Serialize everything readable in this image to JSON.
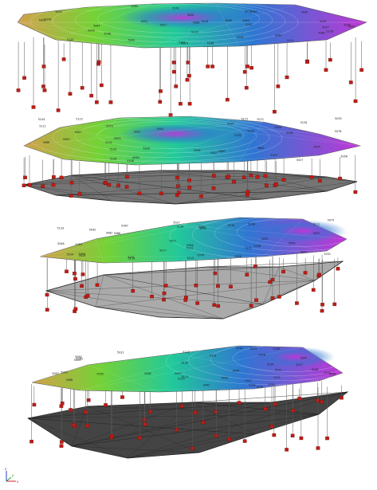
{
  "figure": {
    "panels": [
      {
        "id": "a",
        "has_base_surface": false,
        "base_color": "",
        "contour_labels": [
          "5134",
          "5133",
          "5131",
          "5126",
          "5122",
          "5119",
          "5115",
          "5111",
          "5108",
          "5104",
          "5101",
          "5097",
          "5093",
          "5090",
          "5086",
          "5082",
          "5078",
          "5075",
          "5071",
          "5067",
          "5064",
          "5060",
          "5056",
          "5053",
          "5049",
          "5046",
          "5042",
          "5038",
          "5035",
          "5031",
          "5027",
          "5024",
          "5020",
          "5017"
        ]
      },
      {
        "id": "b",
        "has_base_surface": true,
        "base_color": "#6e6e6e",
        "contour_labels": [
          "5134",
          "5133",
          "5131",
          "5126",
          "5122",
          "5119",
          "5115",
          "5111",
          "5108",
          "5104",
          "5101",
          "5097",
          "5093",
          "5090",
          "5086",
          "5082",
          "5078",
          "5075",
          "5071",
          "5067",
          "5064",
          "5060",
          "5056",
          "5053",
          "5049",
          "5046",
          "5042",
          "5038",
          "5035",
          "5031",
          "5027",
          "5024",
          "5020",
          "5017"
        ]
      },
      {
        "id": "c",
        "has_base_surface": true,
        "base_color": "#a6a6a6",
        "contour_labels": [
          "5134",
          "5133",
          "5131",
          "5126",
          "5122",
          "5119",
          "5115",
          "5111",
          "5108",
          "5104",
          "5101",
          "5097",
          "5093",
          "5090",
          "5086",
          "5082",
          "5078",
          "5075",
          "5071",
          "5067",
          "5064",
          "5060",
          "5056",
          "5053",
          "5049",
          "5046",
          "5042",
          "5038",
          "5035",
          "5031",
          "5027",
          "5024",
          "5020",
          "5017"
        ]
      },
      {
        "id": "d",
        "has_base_surface": true,
        "base_color": "#3a3a3a",
        "contour_labels": [
          "5134",
          "5133",
          "5131",
          "5126",
          "5122",
          "5119",
          "5115",
          "5111",
          "5108",
          "5104",
          "5101",
          "5097",
          "5093",
          "5090",
          "5086",
          "5082",
          "5078",
          "5075",
          "5071",
          "5067",
          "5064",
          "5060",
          "5056",
          "5053",
          "5049",
          "5046",
          "5042",
          "5038",
          "5035",
          "5031",
          "5027",
          "5024",
          "5020",
          "5017"
        ]
      }
    ],
    "colors": {
      "surface_low": "#d2a04a",
      "surface_mid": "#74d236",
      "surface_mid2": "#22c99a",
      "surface_high": "#2f76d2",
      "surface_peak": "#c236d6",
      "sample_marker": "#c01c16",
      "drop_line": "#5a5a5a",
      "axis_x": "#d62020",
      "axis_y": "#20a020",
      "axis_z": "#2040d0"
    },
    "axis_triad": {
      "x": "x",
      "y": "y",
      "z": "z"
    }
  }
}
